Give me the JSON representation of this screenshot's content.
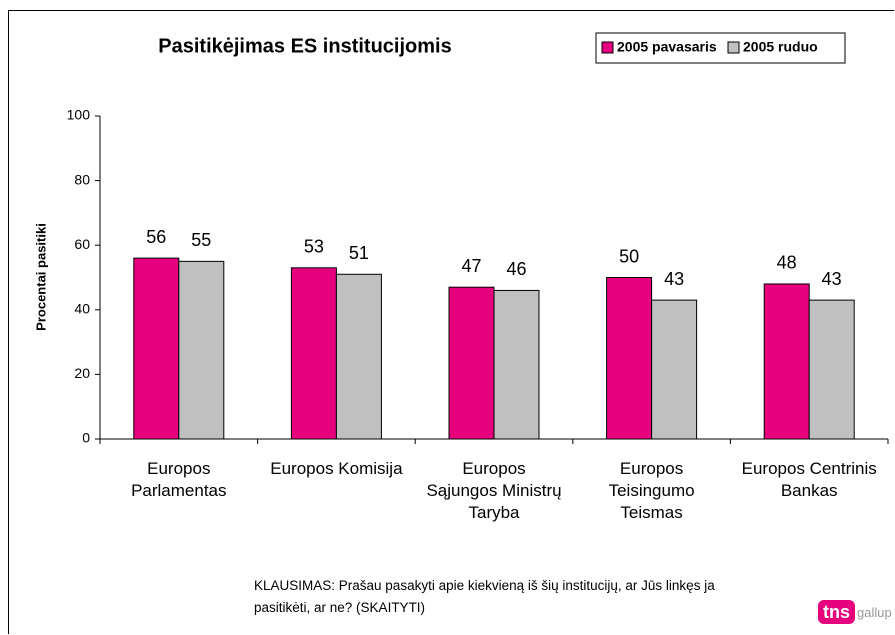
{
  "chart_data": {
    "type": "bar",
    "title": "Pasitikėjimas ES institucijomis",
    "y_label": "Procentai pasitiki",
    "categories": [
      "Europos\nParlamentas",
      "Europos Komisija",
      "Europos\nSąjungos Ministrų\nTaryba",
      "Europos\nTeisingumo\nTeismas",
      "Europos Centrinis\nBankas"
    ],
    "series": [
      {
        "name": "2005 pavasaris",
        "color": "#e6007e",
        "values": [
          56,
          53,
          47,
          50,
          48
        ]
      },
      {
        "name": "2005 ruduo",
        "color": "#c0c0c0",
        "values": [
          55,
          51,
          46,
          43,
          43
        ]
      }
    ],
    "ylim": [
      0,
      100
    ],
    "yticks": [
      0,
      20,
      40,
      60,
      80,
      100
    ],
    "note": "KLAUSIMAS: Prašau pasakyti apie kiekvieną iš šių institucijų, ar Jūs linkęs ja pasitikėti, ar ne? (SKAITYTI)",
    "logo": {
      "mark": "tns",
      "text": "gallup"
    }
  }
}
